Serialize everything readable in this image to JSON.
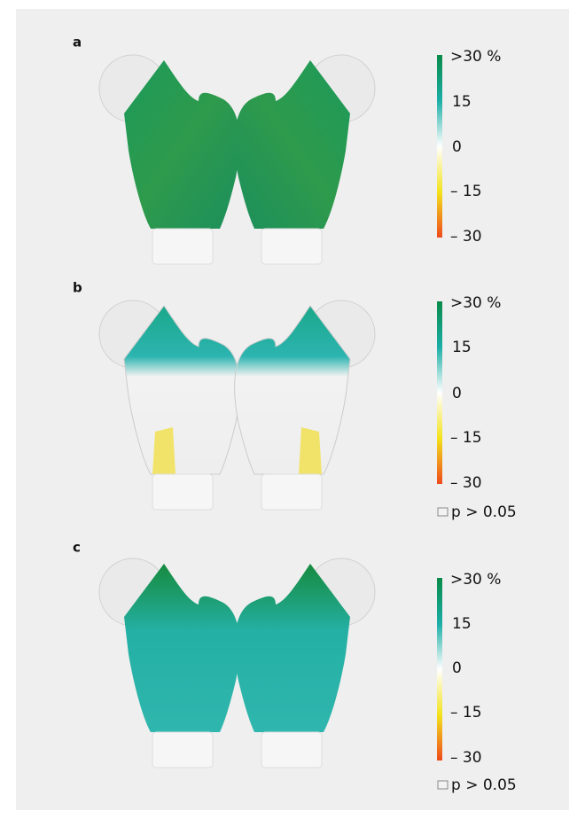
{
  "panels": [
    {
      "label": "a",
      "scale": [
        ">30 %",
        "15",
        "0",
        "– 15",
        "– 30"
      ]
    },
    {
      "label": "b",
      "scale": [
        ">30 %",
        "15",
        "0",
        "– 15",
        "– 30"
      ],
      "legend": "p > 0.05"
    },
    {
      "label": "c",
      "scale": [
        ">30 %",
        "15",
        "0",
        "– 15",
        "– 30"
      ],
      "legend": "p > 0.05"
    }
  ]
}
